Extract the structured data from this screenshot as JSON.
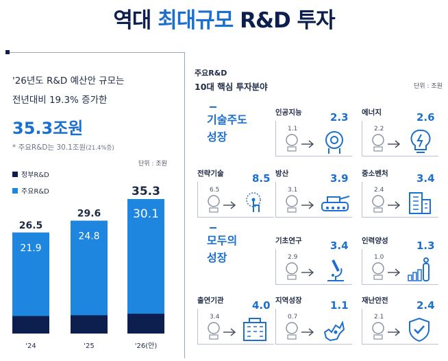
{
  "title": {
    "part1": "역대 ",
    "highlight": "최대규모",
    "part2": " R&D 투자"
  },
  "left": {
    "line1": "'26년도 R&D 예산안 규모는",
    "line2": "전년대비 19.3% 증가한",
    "total": "35.3조원",
    "note_main": "* 주요R&D는 30.1조원",
    "note_small": "(21.4%증)",
    "unit": "단위 : 조원",
    "legend": [
      {
        "label": "정부R&D",
        "color": "#0c1f4f"
      },
      {
        "label": "주요R&D",
        "color": "#1f86e0"
      }
    ]
  },
  "chart_data": {
    "type": "bar",
    "categories": [
      "'24",
      "'25",
      "'26(안)"
    ],
    "series": [
      {
        "name": "정부R&D",
        "values": [
          26.5,
          29.6,
          35.3
        ]
      },
      {
        "name": "주요R&D",
        "values": [
          21.9,
          24.8,
          30.1
        ]
      }
    ],
    "unit": "단위 : 조원",
    "colors": {
      "total": "#0c1f4f",
      "major": "#1f86e0",
      "label_light": "#ffffff",
      "label_dark": "#1d2a44"
    }
  },
  "right": {
    "header1": "주요R&D",
    "header2": "10대 핵심 투자분야",
    "unit": "단위 : 조원",
    "section1": [
      "기술주도",
      "성장"
    ],
    "section2": [
      "모두의",
      "성장"
    ],
    "fields": [
      {
        "name": "인공지능",
        "prev": "1.1",
        "cur": "2.3",
        "icon": "ai-head-icon"
      },
      {
        "name": "에너지",
        "prev": "2.2",
        "cur": "2.6",
        "icon": "lightbulb-icon"
      },
      {
        "name": "전략기술",
        "prev": "6.5",
        "cur": "8.5",
        "icon": "tech-touch-icon"
      },
      {
        "name": "방산",
        "prev": "3.1",
        "cur": "3.9",
        "icon": "tank-icon"
      },
      {
        "name": "중소벤처",
        "prev": "2.4",
        "cur": "3.4",
        "icon": "building-icon"
      },
      {
        "name": "기초연구",
        "prev": "2.9",
        "cur": "3.4",
        "icon": "microscope-icon"
      },
      {
        "name": "인력양성",
        "prev": "1.0",
        "cur": "1.3",
        "icon": "person-growth-icon"
      },
      {
        "name": "출연기관",
        "prev": "3.4",
        "cur": "4.0",
        "icon": "institute-icon"
      },
      {
        "name": "지역성장",
        "prev": "0.7",
        "cur": "1.1",
        "icon": "region-map-icon"
      },
      {
        "name": "재난안전",
        "prev": "2.1",
        "cur": "2.4",
        "icon": "shield-check-icon"
      }
    ]
  }
}
